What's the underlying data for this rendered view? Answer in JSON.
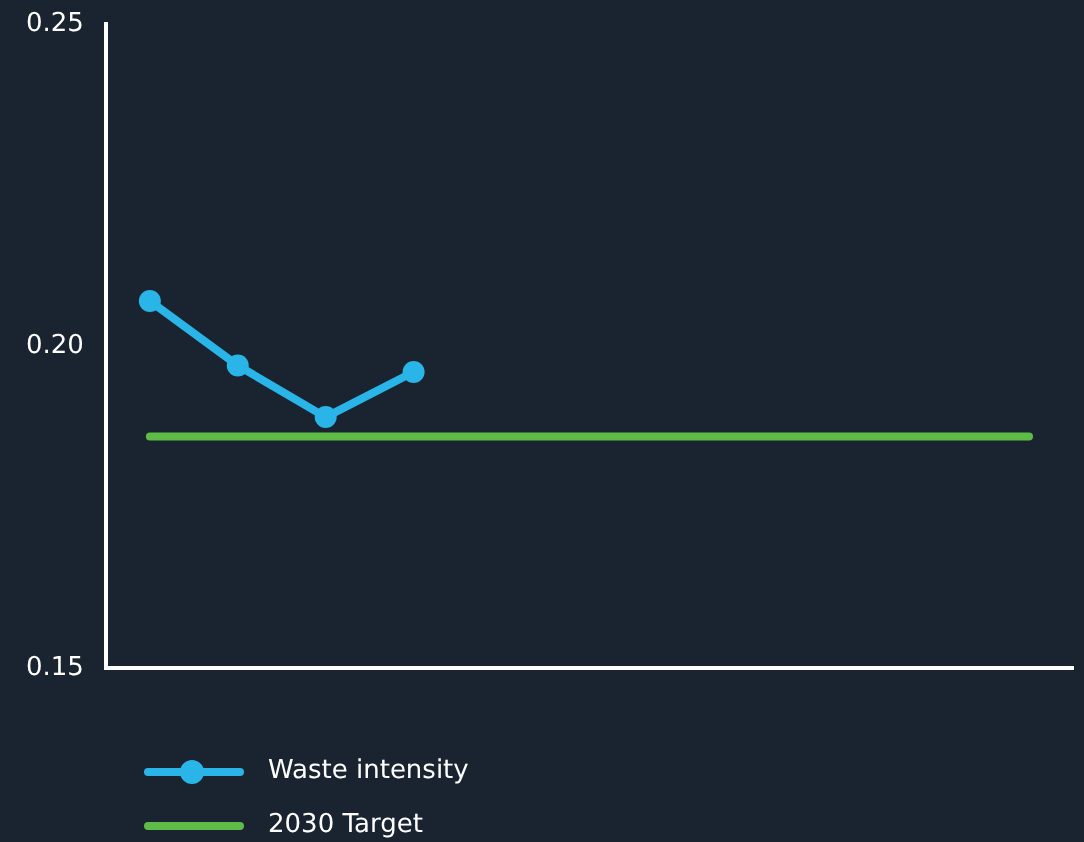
{
  "chart_data": {
    "type": "line",
    "categories": [
      null,
      null,
      null,
      null,
      null,
      null,
      null,
      null,
      null,
      null,
      null
    ],
    "series": [
      {
        "name": "Waste intensity",
        "color": "#29b5e8",
        "marker": "circle",
        "values": [
          0.207,
          0.197,
          0.189,
          0.196,
          null,
          null,
          null,
          null,
          null,
          null,
          null
        ]
      },
      {
        "name": "2030 Target",
        "color": "#5dbb46",
        "marker": "none",
        "values": [
          0.186,
          0.186,
          0.186,
          0.186,
          0.186,
          0.186,
          0.186,
          0.186,
          0.186,
          0.186,
          0.186
        ]
      }
    ],
    "ylim": [
      0.15,
      0.25
    ],
    "yticks": [
      0.15,
      "0.20",
      0.25
    ],
    "grid": false,
    "legend": "bottom left",
    "tick_labels": "y",
    "line_style": "solid"
  }
}
